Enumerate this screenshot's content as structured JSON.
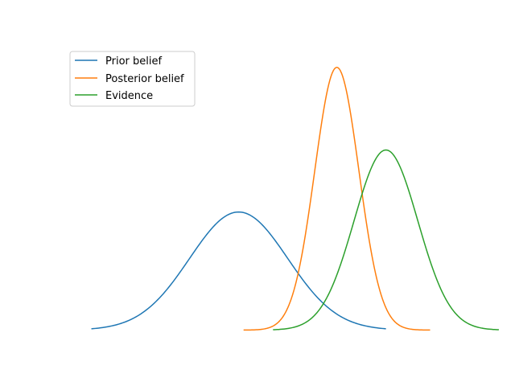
{
  "chart_data": {
    "type": "line",
    "title": "",
    "xlabel": "",
    "ylabel": "",
    "axes_visible": false,
    "grid": false,
    "legend_position": "top-left",
    "xlim": [
      -2.55,
      5.58
    ],
    "ylim": [
      -0.045,
      0.96
    ],
    "series": [
      {
        "name": "Prior belief",
        "color": "#1f77b4",
        "distribution": "normal",
        "mean": 1.0,
        "sd": 1.0,
        "x_range": [
          -2.0,
          4.0
        ],
        "peak": 0.4
      },
      {
        "name": "Posterior belief",
        "color": "#ff7f0e",
        "distribution": "normal",
        "mean": 3.0,
        "sd": 0.45,
        "x_range": [
          1.1,
          4.9
        ],
        "peak": 0.89
      },
      {
        "name": "Evidence",
        "color": "#2ca02c",
        "distribution": "normal",
        "mean": 4.0,
        "sd": 0.65,
        "x_range": [
          1.7,
          6.3
        ],
        "peak": 0.61
      }
    ]
  }
}
